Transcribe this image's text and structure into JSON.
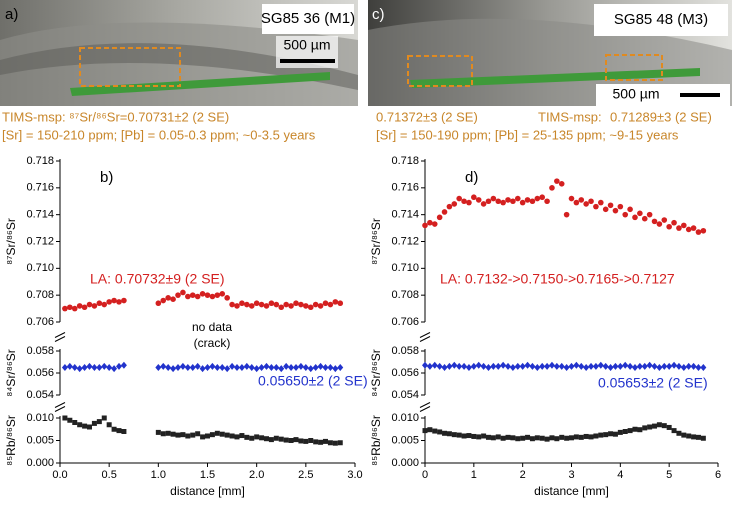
{
  "chart_data": [
    {
      "type": "scatter",
      "title": "b)",
      "photo_label": "a)",
      "sample": "SG85 36 (M1)",
      "scale_bar": "500 µm",
      "notes": [
        "TIMS-msp: ⁸⁷Sr/⁸⁶Sr=0.70731±2 (2 SE)",
        "[Sr] = 150-210 ppm; [Pb] = 0.05-0.3 ppm; ~0-3.5 years"
      ],
      "annotations": [
        {
          "text": "LA: 0.70732±9 (2 SE)",
          "color": "#d42020"
        },
        {
          "text": "no data",
          "color": "#000000"
        },
        {
          "text": "(crack)",
          "color": "#000000"
        },
        {
          "text": "0.05650±2 (2 SE)",
          "color": "#2233cc"
        }
      ],
      "xlabel": "distance [mm]",
      "xlim": [
        0,
        3
      ],
      "xticks": [
        {
          "value": 0,
          "label": "0.0"
        },
        0.5,
        {
          "value": 1,
          "label": "1.0"
        },
        1.5,
        {
          "value": 2,
          "label": "2.0"
        },
        2.5,
        {
          "value": 3,
          "label": "3.0"
        }
      ],
      "x": [
        0.05,
        0.1,
        0.15,
        0.2,
        0.25,
        0.3,
        0.35,
        0.4,
        0.45,
        0.5,
        0.55,
        0.6,
        0.65,
        1.0,
        1.05,
        1.1,
        1.15,
        1.2,
        1.25,
        1.3,
        1.35,
        1.4,
        1.45,
        1.5,
        1.55,
        1.6,
        1.65,
        1.7,
        1.75,
        1.8,
        1.85,
        1.9,
        1.95,
        2.0,
        2.05,
        2.1,
        2.15,
        2.2,
        2.25,
        2.3,
        2.35,
        2.4,
        2.45,
        2.5,
        2.55,
        2.6,
        2.65,
        2.7,
        2.75,
        2.8,
        2.85
      ],
      "panels": [
        {
          "ylabel": "⁸⁷Sr/⁸⁶Sr",
          "ylim": [
            0.706,
            0.718
          ],
          "yticks": [
            0.706,
            0.708,
            {
              "value": 0.71,
              "label": "0.710"
            },
            0.712,
            0.714,
            0.716,
            0.718
          ],
          "series": [
            {
              "color": "#d42020",
              "marker": "circle",
              "values": [
                0.707,
                0.7071,
                0.707,
                0.7072,
                0.7071,
                0.7073,
                0.7072,
                0.7074,
                0.7073,
                0.7075,
                0.7076,
                0.7075,
                0.7076,
                0.7074,
                0.7076,
                0.7078,
                0.7077,
                0.708,
                0.7082,
                0.7079,
                0.708,
                0.7079,
                0.7081,
                0.708,
                0.7079,
                0.708,
                0.7081,
                0.7078,
                0.7073,
                0.7072,
                0.7074,
                0.7073,
                0.7072,
                0.7074,
                0.7073,
                0.7072,
                0.7074,
                0.7073,
                0.7071,
                0.7073,
                0.7072,
                0.7074,
                0.7073,
                0.7072,
                0.7071,
                0.7073,
                0.7072,
                0.7074,
                0.7073,
                0.7075,
                0.7074
              ]
            }
          ]
        },
        {
          "ylabel": "⁸⁴Sr/⁸⁶Sr",
          "ylim": [
            0.054,
            0.058
          ],
          "yticks": [
            0.054,
            0.056,
            0.058
          ],
          "series": [
            {
              "color": "#2233cc",
              "marker": "diamond",
              "values": [
                0.0565,
                0.0566,
                0.0565,
                0.0564,
                0.0565,
                0.0566,
                0.0565,
                0.0565,
                0.0566,
                0.0565,
                0.0564,
                0.0566,
                0.0567,
                0.0565,
                0.0566,
                0.0565,
                0.0564,
                0.0565,
                0.0566,
                0.0565,
                0.0565,
                0.0566,
                0.0564,
                0.0565,
                0.0566,
                0.0565,
                0.0565,
                0.0564,
                0.0566,
                0.0565,
                0.0565,
                0.0566,
                0.0565,
                0.0564,
                0.0565,
                0.0566,
                0.0565,
                0.0565,
                0.0564,
                0.0566,
                0.0565,
                0.0565,
                0.0566,
                0.0565,
                0.0564,
                0.0565,
                0.0566,
                0.0565,
                0.0565,
                0.0564,
                0.0565
              ]
            }
          ]
        },
        {
          "ylabel": "⁸⁵Rb/⁸⁶Sr",
          "ylim": [
            0,
            0.01
          ],
          "yticks": [
            {
              "value": 0,
              "label": "0.000"
            },
            0.005,
            {
              "value": 0.01,
              "label": "0.010"
            }
          ],
          "series": [
            {
              "color": "#222222",
              "marker": "square",
              "values": [
                0.01,
                0.0095,
                0.009,
                0.0085,
                0.0082,
                0.008,
                0.0088,
                0.0092,
                0.01,
                0.0085,
                0.0075,
                0.0072,
                0.007,
                0.0068,
                0.0065,
                0.0066,
                0.0064,
                0.0062,
                0.0063,
                0.006,
                0.0062,
                0.0065,
                0.0058,
                0.006,
                0.0063,
                0.0066,
                0.0064,
                0.0062,
                0.006,
                0.0058,
                0.0061,
                0.0057,
                0.0055,
                0.0058,
                0.0056,
                0.0054,
                0.0052,
                0.0055,
                0.0053,
                0.0051,
                0.005,
                0.0052,
                0.0049,
                0.0048,
                0.005,
                0.0047,
                0.0046,
                0.0048,
                0.0045,
                0.0044,
                0.0045
              ]
            }
          ]
        }
      ]
    },
    {
      "type": "scatter",
      "title": "d)",
      "photo_label": "c)",
      "sample": "SG85 48 (M3)",
      "scale_bar": "500 µm",
      "notes": [
        "0.71372±3 (2 SE)",
        "TIMS-msp:",
        "0.71289±3 (2 SE)",
        "[Sr] = 150-190 ppm; [Pb] = 25-135 ppm; ~9-15 years"
      ],
      "annotations": [
        {
          "text": "LA: 0.7132->0.7150->0.7165->0.7127",
          "color": "#d42020"
        },
        {
          "text": "0.05653±2 (2 SE)",
          "color": "#2233cc"
        }
      ],
      "xlabel": "distance [mm]",
      "xlim": [
        0,
        6
      ],
      "xticks": [
        0,
        1,
        2,
        3,
        4,
        5,
        6
      ],
      "x": [
        0.0,
        0.1,
        0.2,
        0.3,
        0.4,
        0.5,
        0.6,
        0.7,
        0.8,
        0.9,
        1.0,
        1.1,
        1.2,
        1.3,
        1.4,
        1.5,
        1.6,
        1.7,
        1.8,
        1.9,
        2.0,
        2.1,
        2.2,
        2.3,
        2.4,
        2.5,
        2.6,
        2.7,
        2.8,
        2.9,
        3.0,
        3.1,
        3.2,
        3.3,
        3.4,
        3.5,
        3.6,
        3.7,
        3.8,
        3.9,
        4.0,
        4.1,
        4.2,
        4.3,
        4.4,
        4.5,
        4.6,
        4.7,
        4.8,
        4.9,
        5.0,
        5.1,
        5.2,
        5.3,
        5.4,
        5.5,
        5.6,
        5.7
      ],
      "panels": [
        {
          "ylabel": "⁸⁷Sr/⁸⁶Sr",
          "ylim": [
            0.706,
            0.718
          ],
          "yticks": [
            0.706,
            0.708,
            {
              "value": 0.71,
              "label": "0.710"
            },
            0.712,
            0.714,
            0.716,
            0.718
          ],
          "series": [
            {
              "color": "#d42020",
              "marker": "circle",
              "values": [
                0.7132,
                0.7134,
                0.7133,
                0.7138,
                0.7142,
                0.7146,
                0.7148,
                0.7152,
                0.715,
                0.7149,
                0.7153,
                0.7151,
                0.7148,
                0.715,
                0.7152,
                0.715,
                0.7149,
                0.7151,
                0.715,
                0.7152,
                0.7149,
                0.7151,
                0.715,
                0.7152,
                0.7153,
                0.715,
                0.716,
                0.7165,
                0.7163,
                0.714,
                0.7152,
                0.7149,
                0.7151,
                0.7148,
                0.715,
                0.7146,
                0.7149,
                0.7144,
                0.7147,
                0.7143,
                0.7146,
                0.714,
                0.7144,
                0.7138,
                0.7141,
                0.7137,
                0.714,
                0.7135,
                0.7133,
                0.7136,
                0.7131,
                0.7134,
                0.713,
                0.7132,
                0.7129,
                0.713,
                0.7127,
                0.7128
              ]
            }
          ]
        },
        {
          "ylabel": "⁸⁴Sr/⁸⁶Sr",
          "ylim": [
            0.054,
            0.058
          ],
          "yticks": [
            0.054,
            0.056,
            0.058
          ],
          "series": [
            {
              "color": "#2233cc",
              "marker": "diamond",
              "values": [
                0.0567,
                0.0566,
                0.0567,
                0.0566,
                0.0565,
                0.0566,
                0.0567,
                0.0566,
                0.0566,
                0.0565,
                0.0566,
                0.0567,
                0.0566,
                0.0565,
                0.0566,
                0.0566,
                0.0567,
                0.0566,
                0.0565,
                0.0566,
                0.0566,
                0.0567,
                0.0566,
                0.0565,
                0.0566,
                0.0566,
                0.0567,
                0.0566,
                0.0566,
                0.0565,
                0.0566,
                0.0567,
                0.0566,
                0.0565,
                0.0566,
                0.0566,
                0.0567,
                0.0566,
                0.0565,
                0.0566,
                0.0566,
                0.0567,
                0.0566,
                0.0565,
                0.0566,
                0.0566,
                0.0567,
                0.0566,
                0.0565,
                0.0566,
                0.0566,
                0.0567,
                0.0566,
                0.0565,
                0.0566,
                0.0566,
                0.0565,
                0.0565
              ]
            }
          ]
        },
        {
          "ylabel": "⁸⁵Rb/⁸⁶Sr",
          "ylim": [
            0,
            0.01
          ],
          "yticks": [
            {
              "value": 0,
              "label": "0.000"
            },
            0.005,
            {
              "value": 0.01,
              "label": "0.010"
            }
          ],
          "series": [
            {
              "color": "#222222",
              "marker": "square",
              "values": [
                0.0072,
                0.0074,
                0.0071,
                0.0069,
                0.0066,
                0.0065,
                0.0063,
                0.0062,
                0.006,
                0.0061,
                0.0059,
                0.0058,
                0.006,
                0.0057,
                0.0056,
                0.0058,
                0.0055,
                0.0057,
                0.0056,
                0.0054,
                0.0055,
                0.0057,
                0.0054,
                0.0056,
                0.0055,
                0.0053,
                0.0056,
                0.0054,
                0.0057,
                0.0055,
                0.0056,
                0.0058,
                0.0057,
                0.0059,
                0.0058,
                0.006,
                0.0062,
                0.0063,
                0.0065,
                0.0064,
                0.0068,
                0.007,
                0.0072,
                0.0075,
                0.0074,
                0.0078,
                0.008,
                0.0082,
                0.0085,
                0.0083,
                0.0079,
                0.0072,
                0.0066,
                0.0062,
                0.006,
                0.0058,
                0.0057,
                0.0055
              ]
            }
          ]
        }
      ]
    }
  ]
}
